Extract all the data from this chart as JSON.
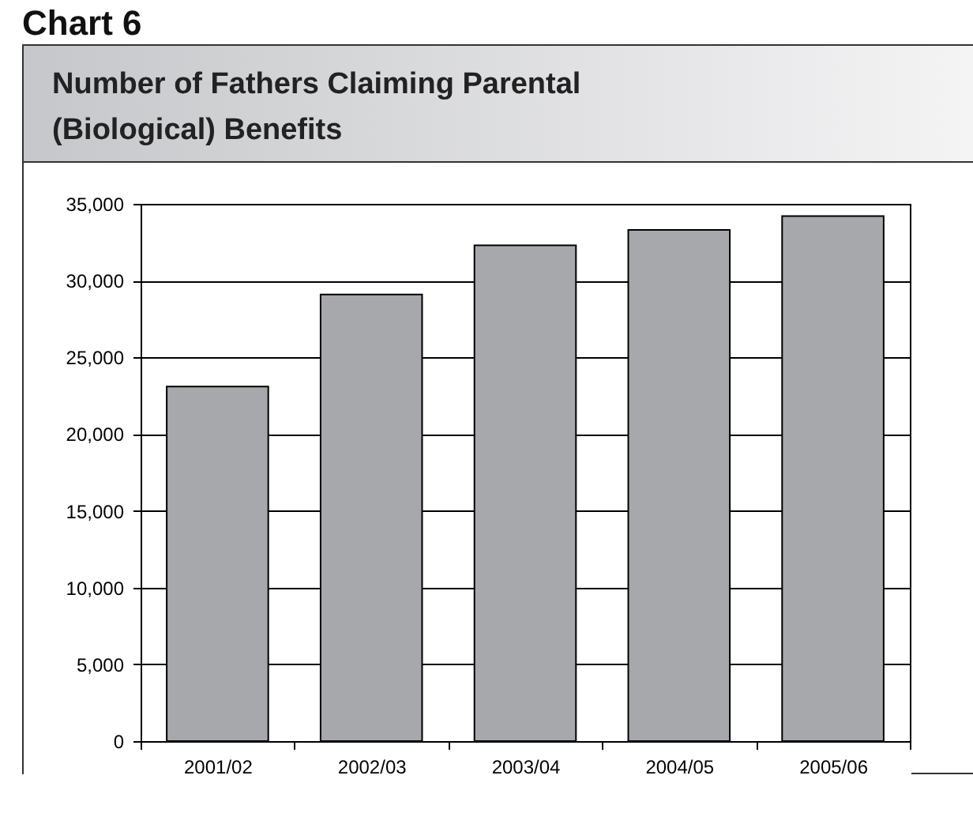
{
  "chart_data": {
    "type": "bar",
    "title": "Number of Fathers Claiming Parental (Biological) Benefits",
    "annotations": [
      "Chart 6"
    ],
    "categories": [
      "2001/02",
      "2002/03",
      "2003/04",
      "2004/05",
      "2005/06"
    ],
    "values": [
      23100,
      29100,
      32300,
      33300,
      34200
    ],
    "color": "#a7a8ab",
    "ylim": [
      0,
      35000
    ],
    "yticks": [
      0,
      {
        "value": 5000,
        "label": "5,000"
      },
      {
        "value": 10000,
        "label": "10,000"
      },
      {
        "value": 15000,
        "label": "15,000"
      },
      {
        "value": 20000,
        "label": "20,000"
      },
      {
        "value": 25000,
        "label": "25,000"
      },
      {
        "value": 30000,
        "label": "30,000"
      },
      {
        "value": 35000,
        "label": "35,000"
      }
    ],
    "grid": "y"
  }
}
